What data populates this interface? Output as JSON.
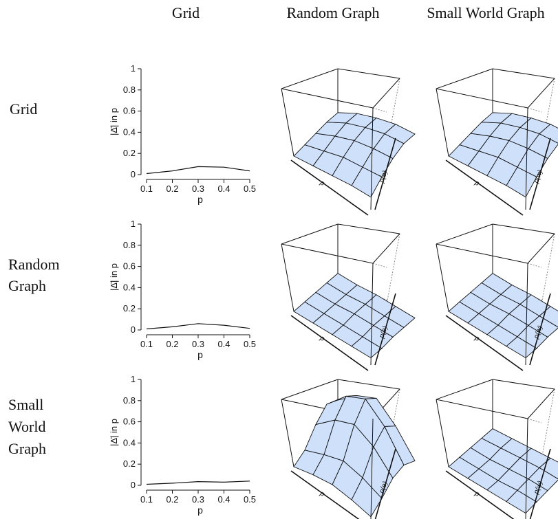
{
  "column_headers": [
    "Grid",
    "Random Graph",
    "Small World Graph"
  ],
  "row_headers": [
    [
      "Grid"
    ],
    [
      "Random",
      "Graph"
    ],
    [
      "Small",
      "World",
      "Graph"
    ]
  ],
  "colors": {
    "surface_fill": "#cfe0fb",
    "line": "#111111"
  },
  "chart_data": [
    {
      "type": "line",
      "row": "Grid",
      "column": "Grid",
      "x": [
        0.1,
        0.2,
        0.3,
        0.4,
        0.5
      ],
      "y": [
        0.01,
        0.035,
        0.075,
        0.07,
        0.035
      ],
      "xlabel": "p",
      "ylabel": "|Δ̄| in p",
      "xticks": [
        "0.1",
        "0.2",
        "0.3",
        "0.4",
        "0.5"
      ],
      "yticks": [
        "0",
        "0.2",
        "0.4",
        "0.6",
        "0.8",
        "1"
      ],
      "xlim": [
        0.1,
        0.5
      ],
      "ylim": [
        0,
        1
      ]
    },
    {
      "type": "surface",
      "row": "Grid",
      "column": "Random Graph",
      "axis_labels": [
        "p",
        "p(e)"
      ],
      "z": [
        [
          0.0,
          0.02,
          0.04,
          0.06,
          0.07
        ],
        [
          0.02,
          0.06,
          0.1,
          0.13,
          0.14
        ],
        [
          0.04,
          0.1,
          0.15,
          0.18,
          0.19
        ],
        [
          0.06,
          0.12,
          0.18,
          0.22,
          0.23
        ],
        [
          0.07,
          0.14,
          0.2,
          0.24,
          0.25
        ]
      ]
    },
    {
      "type": "surface",
      "row": "Grid",
      "column": "Small World Graph",
      "axis_labels": [
        "p",
        "p(w)"
      ],
      "z": [
        [
          0.0,
          0.02,
          0.04,
          0.06,
          0.07
        ],
        [
          0.02,
          0.06,
          0.1,
          0.13,
          0.14
        ],
        [
          0.04,
          0.1,
          0.15,
          0.18,
          0.19
        ],
        [
          0.06,
          0.12,
          0.18,
          0.22,
          0.23
        ],
        [
          0.07,
          0.14,
          0.2,
          0.24,
          0.25
        ]
      ]
    },
    {
      "type": "line",
      "row": "Random Graph",
      "column": "Grid",
      "x": [
        0.1,
        0.2,
        0.3,
        0.4,
        0.5
      ],
      "y": [
        0.01,
        0.03,
        0.06,
        0.045,
        0.015
      ],
      "xlabel": "p",
      "ylabel": "|Δ̄| in p",
      "xticks": [
        "0.1",
        "0.2",
        "0.3",
        "0.4",
        "0.5"
      ],
      "yticks": [
        "0",
        "0.2",
        "0.4",
        "0.6",
        "0.8",
        "1"
      ],
      "xlim": [
        0.1,
        0.5
      ],
      "ylim": [
        0,
        1
      ]
    },
    {
      "type": "surface",
      "row": "Random Graph",
      "column": "Random Graph",
      "axis_labels": [
        "p",
        "p(e)"
      ],
      "z": [
        [
          0.0,
          0.01,
          0.02,
          0.03,
          0.04
        ],
        [
          0.01,
          0.02,
          0.03,
          0.04,
          0.05
        ],
        [
          0.02,
          0.03,
          0.05,
          0.06,
          0.07
        ],
        [
          0.03,
          0.04,
          0.06,
          0.07,
          0.08
        ],
        [
          0.04,
          0.05,
          0.07,
          0.08,
          0.09
        ]
      ]
    },
    {
      "type": "surface",
      "row": "Random Graph",
      "column": "Small World Graph",
      "axis_labels": [
        "p",
        "p(w)"
      ],
      "z": [
        [
          0.0,
          0.01,
          0.02,
          0.03,
          0.04
        ],
        [
          0.01,
          0.02,
          0.03,
          0.04,
          0.05
        ],
        [
          0.02,
          0.03,
          0.05,
          0.06,
          0.07
        ],
        [
          0.03,
          0.04,
          0.06,
          0.07,
          0.08
        ],
        [
          0.04,
          0.05,
          0.07,
          0.08,
          0.09
        ]
      ]
    },
    {
      "type": "line",
      "row": "Small World Graph",
      "column": "Grid",
      "x": [
        0.1,
        0.2,
        0.3,
        0.4,
        0.5
      ],
      "y": [
        0.01,
        0.02,
        0.035,
        0.03,
        0.04
      ],
      "xlabel": "p",
      "ylabel": "|Δ̄| in p",
      "xticks": [
        "0.1",
        "0.2",
        "0.3",
        "0.4",
        "0.5"
      ],
      "yticks": [
        "0",
        "0.2",
        "0.4",
        "0.6",
        "0.8",
        "1"
      ],
      "xlim": [
        0.1,
        0.5
      ],
      "ylim": [
        0,
        1
      ]
    },
    {
      "type": "surface",
      "row": "Small World Graph",
      "column": "Random Graph",
      "axis_labels": [
        "p",
        "p(e)"
      ],
      "z": [
        [
          0.0,
          0.05,
          0.15,
          0.22,
          0.2
        ],
        [
          0.03,
          0.1,
          0.25,
          0.34,
          0.3
        ],
        [
          0.05,
          0.14,
          0.3,
          0.4,
          0.36
        ],
        [
          0.04,
          0.12,
          0.25,
          0.32,
          0.28
        ],
        [
          0.02,
          0.08,
          0.15,
          0.18,
          0.16
        ]
      ]
    },
    {
      "type": "surface",
      "row": "Small World Graph",
      "column": "Small World Graph",
      "axis_labels": [
        "p",
        "p(w)"
      ],
      "z": [
        [
          0.0,
          0.01,
          0.02,
          0.03,
          0.04
        ],
        [
          0.01,
          0.02,
          0.03,
          0.05,
          0.06
        ],
        [
          0.02,
          0.03,
          0.05,
          0.07,
          0.08
        ],
        [
          0.03,
          0.05,
          0.07,
          0.09,
          0.1
        ],
        [
          0.04,
          0.06,
          0.08,
          0.1,
          0.12
        ]
      ]
    }
  ]
}
